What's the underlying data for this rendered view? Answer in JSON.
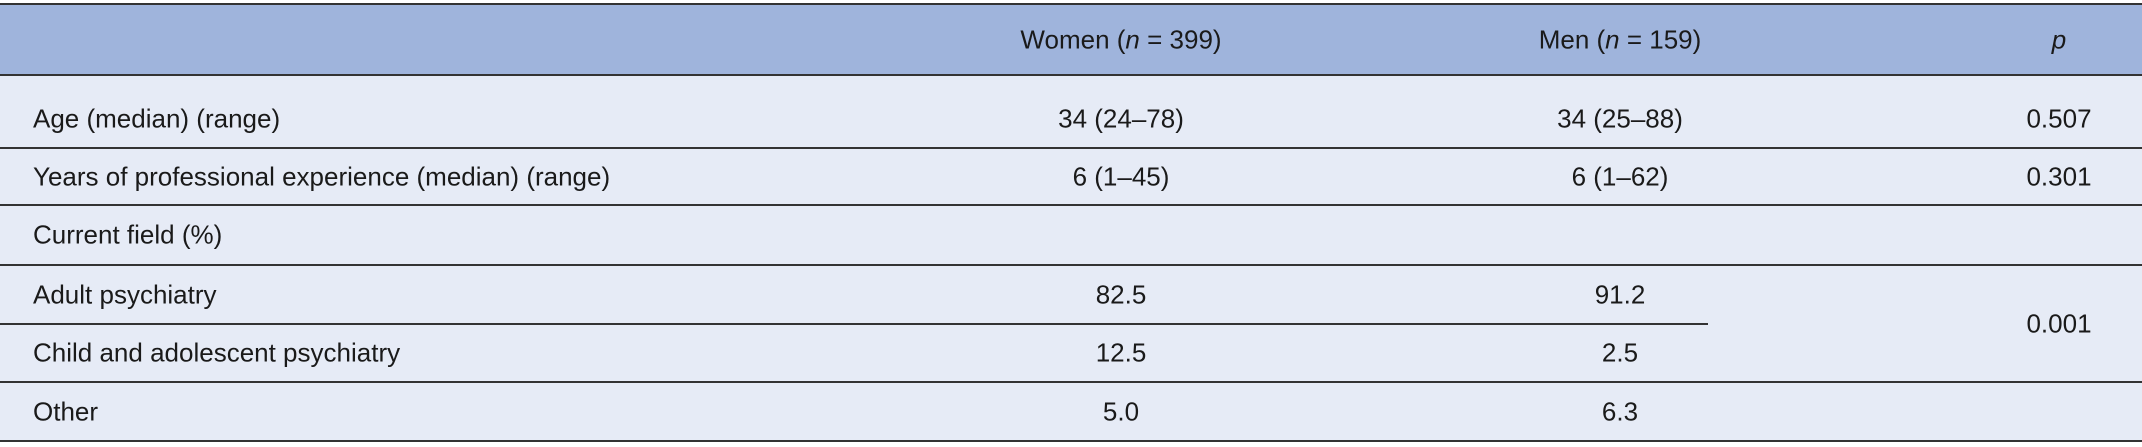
{
  "table": {
    "header": [
      {
        "prefix": "Women (",
        "italic": "n",
        "suffix": " = 399)"
      },
      {
        "prefix": "Men (",
        "italic": "n",
        "suffix": " = 159)"
      },
      {
        "italic": "p"
      }
    ],
    "rows": [
      {
        "label": "Age (median) (range)",
        "women": "34 (24–78)",
        "men": "34 (25–88)",
        "p": "0.507"
      },
      {
        "label": "Years of professional experience (median) (range)",
        "women": "6 (1–45)",
        "men": "6 (1–62)",
        "p": "0.301"
      },
      {
        "label": "Current field (%)"
      },
      {
        "label": "Adult psychiatry",
        "women": "82.5",
        "men": "91.2",
        "p": "0.001"
      },
      {
        "label": "Child and adolescent psychiatry",
        "women": "12.5",
        "men": "2.5"
      },
      {
        "label": "Other",
        "women": "5.0",
        "men": "6.3"
      }
    ]
  }
}
